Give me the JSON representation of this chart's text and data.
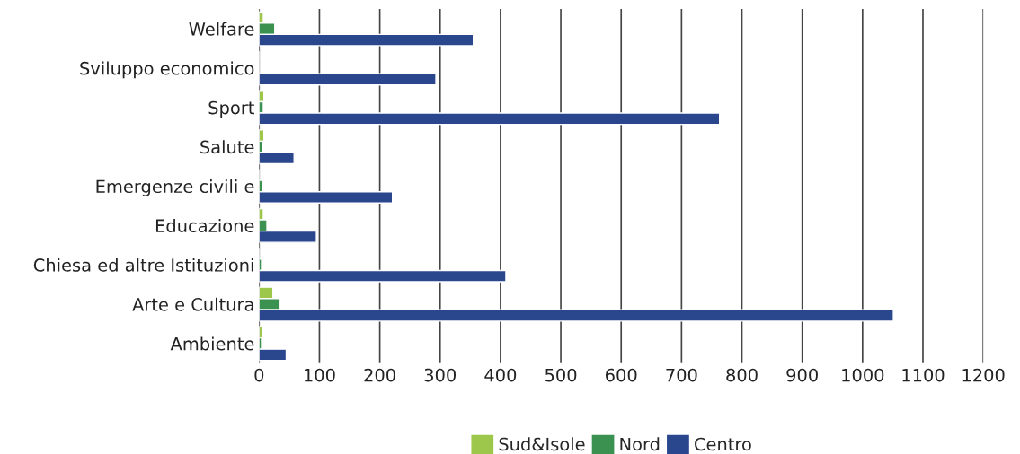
{
  "chart_data": {
    "type": "bar",
    "orientation": "horizontal",
    "categories": [
      "Welfare",
      "Sviluppo economico",
      "Sport",
      "Salute",
      "Emergenze civili e",
      "Educazione",
      "Chiesa ed altre Istituzioni",
      "Arte e Cultura",
      "Ambiente"
    ],
    "series": [
      {
        "name": "Sud&Isole",
        "color": "#9dc74a",
        "values": [
          7,
          null,
          8,
          8,
          null,
          7,
          null,
          23,
          6
        ]
      },
      {
        "name": "Nord",
        "color": "#3a9150",
        "values": [
          26,
          null,
          7,
          6,
          6,
          13,
          4,
          35,
          4
        ]
      },
      {
        "name": "Centro",
        "color": "#2a478e",
        "values": [
          355,
          293,
          763,
          58,
          221,
          95,
          409,
          1051,
          45
        ]
      }
    ],
    "xlim": [
      0,
      1200
    ],
    "xticks": [
      0,
      100,
      200,
      300,
      400,
      500,
      600,
      700,
      800,
      900,
      1000,
      1100,
      1200
    ],
    "grid": "x",
    "legend": "bottom"
  }
}
